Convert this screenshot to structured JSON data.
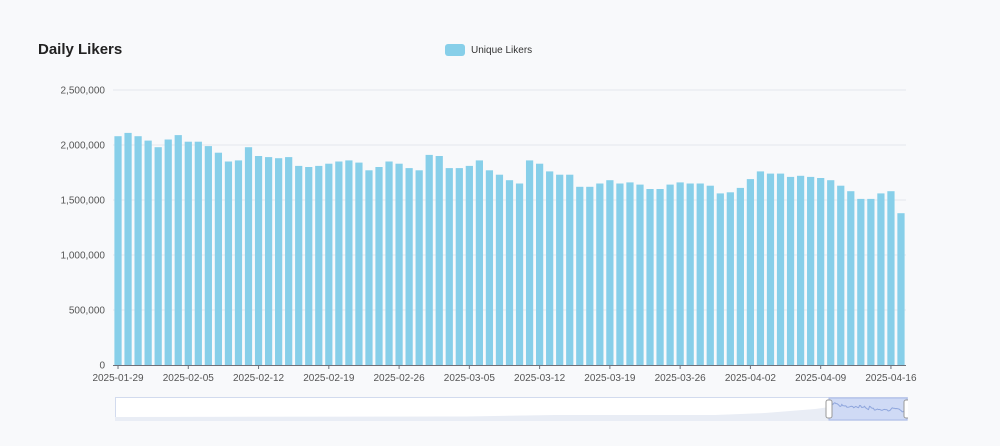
{
  "title": "Daily Likers",
  "legend": {
    "label": "Unique Likers"
  },
  "colors": {
    "bar": "#87cfe9",
    "grid": "#e4e7ee",
    "axis": "#555555",
    "slider_fill": "#cfdaf5",
    "slider_border": "#a9b9e6"
  },
  "chart_data": {
    "type": "bar",
    "title": "Daily Likers",
    "xlabel": "",
    "ylabel": "",
    "ylim": [
      0,
      2500000
    ],
    "y_ticks": [
      0,
      500000,
      1000000,
      1500000,
      2000000,
      2500000
    ],
    "y_tick_labels": [
      "0",
      "500,000",
      "1,000,000",
      "1,500,000",
      "2,000,000",
      "2,500,000"
    ],
    "x_tick_labels": [
      "2025-01-29",
      "2025-02-05",
      "2025-02-12",
      "2025-02-19",
      "2025-02-26",
      "2025-03-05",
      "2025-03-12",
      "2025-03-19",
      "2025-03-26",
      "2025-04-02",
      "2025-04-09",
      "2025-04-16"
    ],
    "grid": true,
    "legend_position": "top-center",
    "series": [
      {
        "name": "Unique Likers",
        "start_date": "2025-01-29",
        "values": [
          2080000,
          2110000,
          2080000,
          2040000,
          1980000,
          2050000,
          2090000,
          2030000,
          2030000,
          1990000,
          1930000,
          1850000,
          1860000,
          1980000,
          1900000,
          1890000,
          1880000,
          1890000,
          1810000,
          1800000,
          1810000,
          1830000,
          1850000,
          1860000,
          1840000,
          1770000,
          1800000,
          1850000,
          1830000,
          1790000,
          1770000,
          1910000,
          1900000,
          1790000,
          1790000,
          1810000,
          1860000,
          1770000,
          1730000,
          1680000,
          1650000,
          1860000,
          1830000,
          1760000,
          1730000,
          1730000,
          1620000,
          1620000,
          1650000,
          1680000,
          1650000,
          1660000,
          1640000,
          1600000,
          1600000,
          1640000,
          1660000,
          1650000,
          1650000,
          1630000,
          1560000,
          1570000,
          1610000,
          1690000,
          1760000,
          1740000,
          1740000,
          1710000,
          1720000,
          1710000,
          1700000,
          1680000,
          1630000,
          1580000,
          1510000,
          1510000,
          1560000,
          1580000,
          1380000
        ]
      }
    ]
  }
}
